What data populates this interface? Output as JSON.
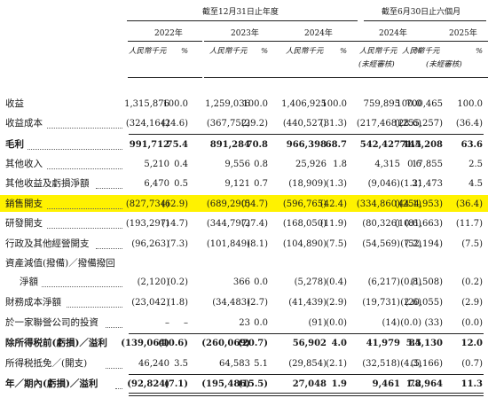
{
  "header": {
    "period_fy": "截至12月31日止年度",
    "period_h1": "截至6月30日止六個月",
    "years": [
      "2022年",
      "2023年",
      "2024年",
      "2024年",
      "2025年"
    ],
    "amount_unit": "人民幣千元",
    "pct_unit": "%",
    "unaudited": "(未經審核)"
  },
  "rows": [
    {
      "label": "收益",
      "bold": false,
      "dotted": false,
      "values": [
        "1,315,876",
        "100.0",
        "1,259,036",
        "100.0",
        "1,406,925",
        "100.0",
        "759,895",
        "100.0",
        "700,465",
        "100.0"
      ]
    },
    {
      "label": "收益成本",
      "bold": false,
      "dotted": true,
      "values": [
        "(324,164)",
        "(24.6)",
        "(367,752)",
        "(29.2)",
        "(440,527)",
        "(31.3)",
        "(217,468)",
        "(28.6)",
        "(255,257)",
        "(36.4)"
      ]
    },
    {
      "label": "毛利",
      "bold": true,
      "dotted": true,
      "values": [
        "991,712",
        "75.4",
        "891,284",
        "70.8",
        "966,398",
        "68.7",
        "542,427",
        "71.4",
        "445,208",
        "63.6"
      ]
    },
    {
      "label": "其他收入",
      "bold": false,
      "dotted": true,
      "values": [
        "5,210",
        "0.4",
        "9,556",
        "0.8",
        "25,926",
        "1.8",
        "4,315",
        "0.6",
        "17,855",
        "2.5"
      ]
    },
    {
      "label": "其他收益及虧損淨額",
      "bold": false,
      "dotted": true,
      "values": [
        "6,470",
        "0.5",
        "9,121",
        "0.7",
        "(18,909)",
        "(1.3)",
        "(9,046)",
        "(1.2)",
        "31,473",
        "4.5"
      ]
    },
    {
      "label": "銷售開支",
      "bold": false,
      "dotted": true,
      "highlight": true,
      "values": [
        "(827,734)",
        "(62.9)",
        "(689,290)",
        "(54.7)",
        "(596,765)",
        "(42.4)",
        "(334,860)",
        "(44.1)",
        "(254,953)",
        "(36.4)"
      ]
    },
    {
      "label": "研發開支",
      "bold": false,
      "dotted": true,
      "values": [
        "(193,297)",
        "(14.7)",
        "(344,797)",
        "(27.4)",
        "(168,050)",
        "(11.9)",
        "(80,326)",
        "(10.6)",
        "(81,663)",
        "(11.7)"
      ]
    },
    {
      "label": "行政及其他經營開支",
      "bold": false,
      "dotted": true,
      "values": [
        "(96,263)",
        "(7.3)",
        "(101,849)",
        "(8.1)",
        "(104,890)",
        "(7.5)",
        "(54,569)",
        "(7.2)",
        "(52,194)",
        "(7.5)"
      ]
    },
    {
      "label": "資產減值(撥備)／撥備撥回",
      "bold": false,
      "dotted": false,
      "values": [
        "",
        "",
        "",
        "",
        "",
        "",
        "",
        "",
        "",
        ""
      ]
    },
    {
      "label": "淨額",
      "bold": false,
      "dotted": true,
      "indent": true,
      "values": [
        "(2,120)",
        "(0.2)",
        "366",
        "0.0",
        "(5,278)",
        "(0.4)",
        "(6,217)",
        "(0.8)",
        "(1,508)",
        "(0.2)"
      ]
    },
    {
      "label": "財務成本淨額",
      "bold": false,
      "dotted": true,
      "values": [
        "(23,042)",
        "(1.8)",
        "(34,483)",
        "(2.7)",
        "(41,439)",
        "(2.9)",
        "(19,731)",
        "(2.6)",
        "(20,055)",
        "(2.9)"
      ]
    },
    {
      "label": "於一家聯營公司的投資",
      "bold": false,
      "dotted": true,
      "values": [
        "–",
        "–",
        "23",
        "0.0",
        "(91)",
        "(0.0)",
        "(14)",
        "(0.0)",
        "(33)",
        "(0.0)"
      ]
    },
    {
      "label": "除所得税前(虧損)／溢利",
      "bold": true,
      "dotted": true,
      "values": [
        "(139,064)",
        "(10.6)",
        "(260,069)",
        "(20.7)",
        "56,902",
        "4.0",
        "41,979",
        "5.5",
        "84,130",
        "12.0"
      ]
    },
    {
      "label": "所得税抵免／(開支)",
      "bold": false,
      "dotted": true,
      "values": [
        "46,240",
        "3.5",
        "64,583",
        "5.1",
        "(29,854)",
        "(2.1)",
        "(32,518)",
        "(4.3)",
        "(5,166)",
        "(0.7)"
      ]
    },
    {
      "label": "年／期內(虧損)／溢利",
      "bold": true,
      "dotted": true,
      "values": [
        "(92,824)",
        "(7.1)",
        "(195,486)",
        "(15.5)",
        "27,048",
        "1.9",
        "9,461",
        "1.2",
        "78,964",
        "11.3"
      ]
    }
  ]
}
